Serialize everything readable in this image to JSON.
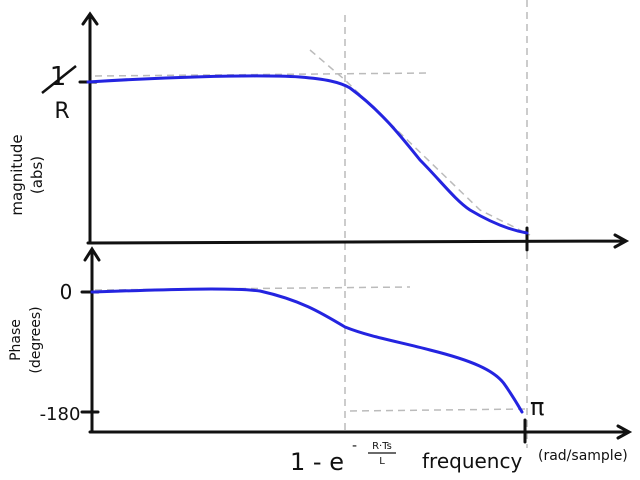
{
  "magnitude_plot": {
    "y_label_line1": "magnitude",
    "y_label_line2": "(abs)",
    "y_tick": {
      "numerator": "1",
      "denominator": "R"
    }
  },
  "phase_plot": {
    "y_label_line1": "Phase",
    "y_label_line2": "(degrees)",
    "y_ticks": [
      "0",
      "-180"
    ]
  },
  "x_axis": {
    "cutoff": {
      "base": "1 - e",
      "exponent_sign": "-",
      "exponent_numerator": "R·Ts",
      "exponent_denominator": "L"
    },
    "label": "frequency",
    "unit": "(rad/sample)",
    "end_tick": "π"
  }
}
